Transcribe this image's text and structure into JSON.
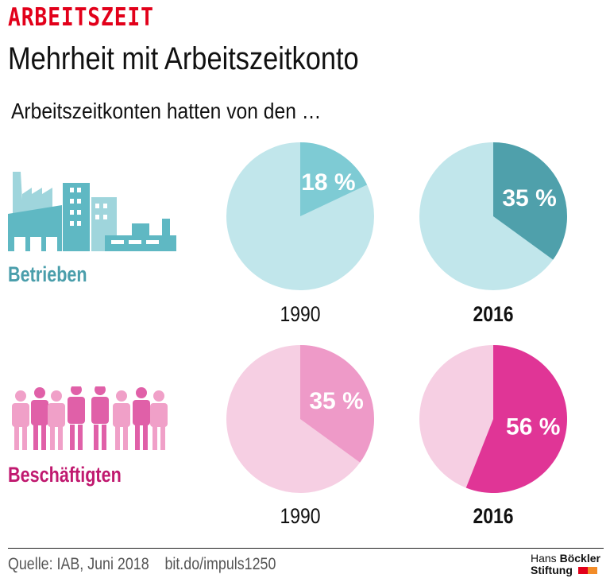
{
  "header": {
    "kicker": "ARBEITSZEIT",
    "title": "Mehrheit mit Arbeitszeitkonto",
    "subtitle": "Arbeitszeitkonten hatten von den …"
  },
  "groups": [
    {
      "label": "Betrieben",
      "icon": "factory-icon",
      "color": "#4a9eab"
    },
    {
      "label": "Beschäftigten",
      "icon": "people-icon",
      "color": "#c0196f"
    }
  ],
  "chart_data": {
    "type": "pie",
    "charts": [
      {
        "group": "Betrieben",
        "year": "1990",
        "value": 18,
        "label": "18 %",
        "color": "#7ecbd4",
        "rest_color": "#c1e6eb"
      },
      {
        "group": "Betrieben",
        "year": "2016",
        "value": 35,
        "label": "35 %",
        "color": "#4fa0ab",
        "rest_color": "#c1e6eb"
      },
      {
        "group": "Beschäftigten",
        "year": "1990",
        "value": 35,
        "label": "35 %",
        "color": "#ee9ac8",
        "rest_color": "#f6cfe3"
      },
      {
        "group": "Beschäftigten",
        "year": "2016",
        "value": 56,
        "label": "56 %",
        "color": "#e03596",
        "rest_color": "#f6cfe3"
      }
    ]
  },
  "footer": {
    "source": "Quelle: IAB, Juni 2018    bit.do/impuls1250",
    "logo_line1_a": "Hans ",
    "logo_line1_b": "Böckler",
    "logo_line2": "Stiftung"
  }
}
